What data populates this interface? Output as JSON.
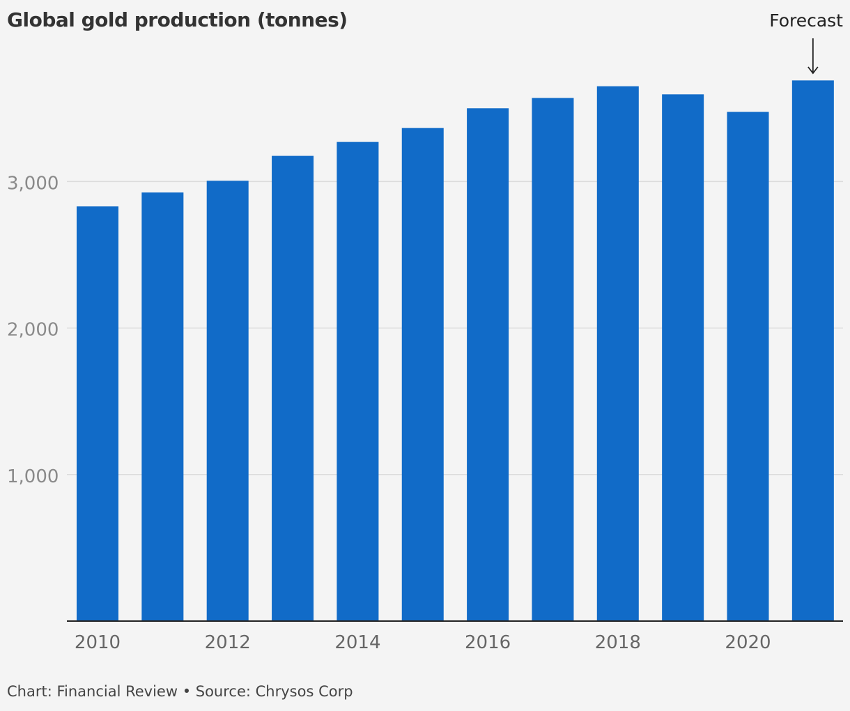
{
  "chart_data": {
    "type": "bar",
    "title": "Global gold production (tonnes)",
    "categories": [
      "2010",
      "2011",
      "2012",
      "2013",
      "2014",
      "2015",
      "2016",
      "2017",
      "2018",
      "2019",
      "2020",
      "2021"
    ],
    "values": [
      2830,
      2925,
      3005,
      3175,
      3270,
      3365,
      3500,
      3570,
      3650,
      3595,
      3475,
      3690
    ],
    "x_tick_labels": [
      "2010",
      "2012",
      "2014",
      "2016",
      "2018",
      "2020"
    ],
    "y_ticks": [
      1000,
      2000,
      3000
    ],
    "y_tick_labels": [
      "1,000",
      "2,000",
      "3,000"
    ],
    "ylim": [
      0,
      3950
    ],
    "grid": true,
    "bar_color": "#116bc8",
    "annotation": {
      "text": "Forecast",
      "category": "2021"
    }
  },
  "footer": "Chart: Financial Review • Source: Chrysos Corp"
}
